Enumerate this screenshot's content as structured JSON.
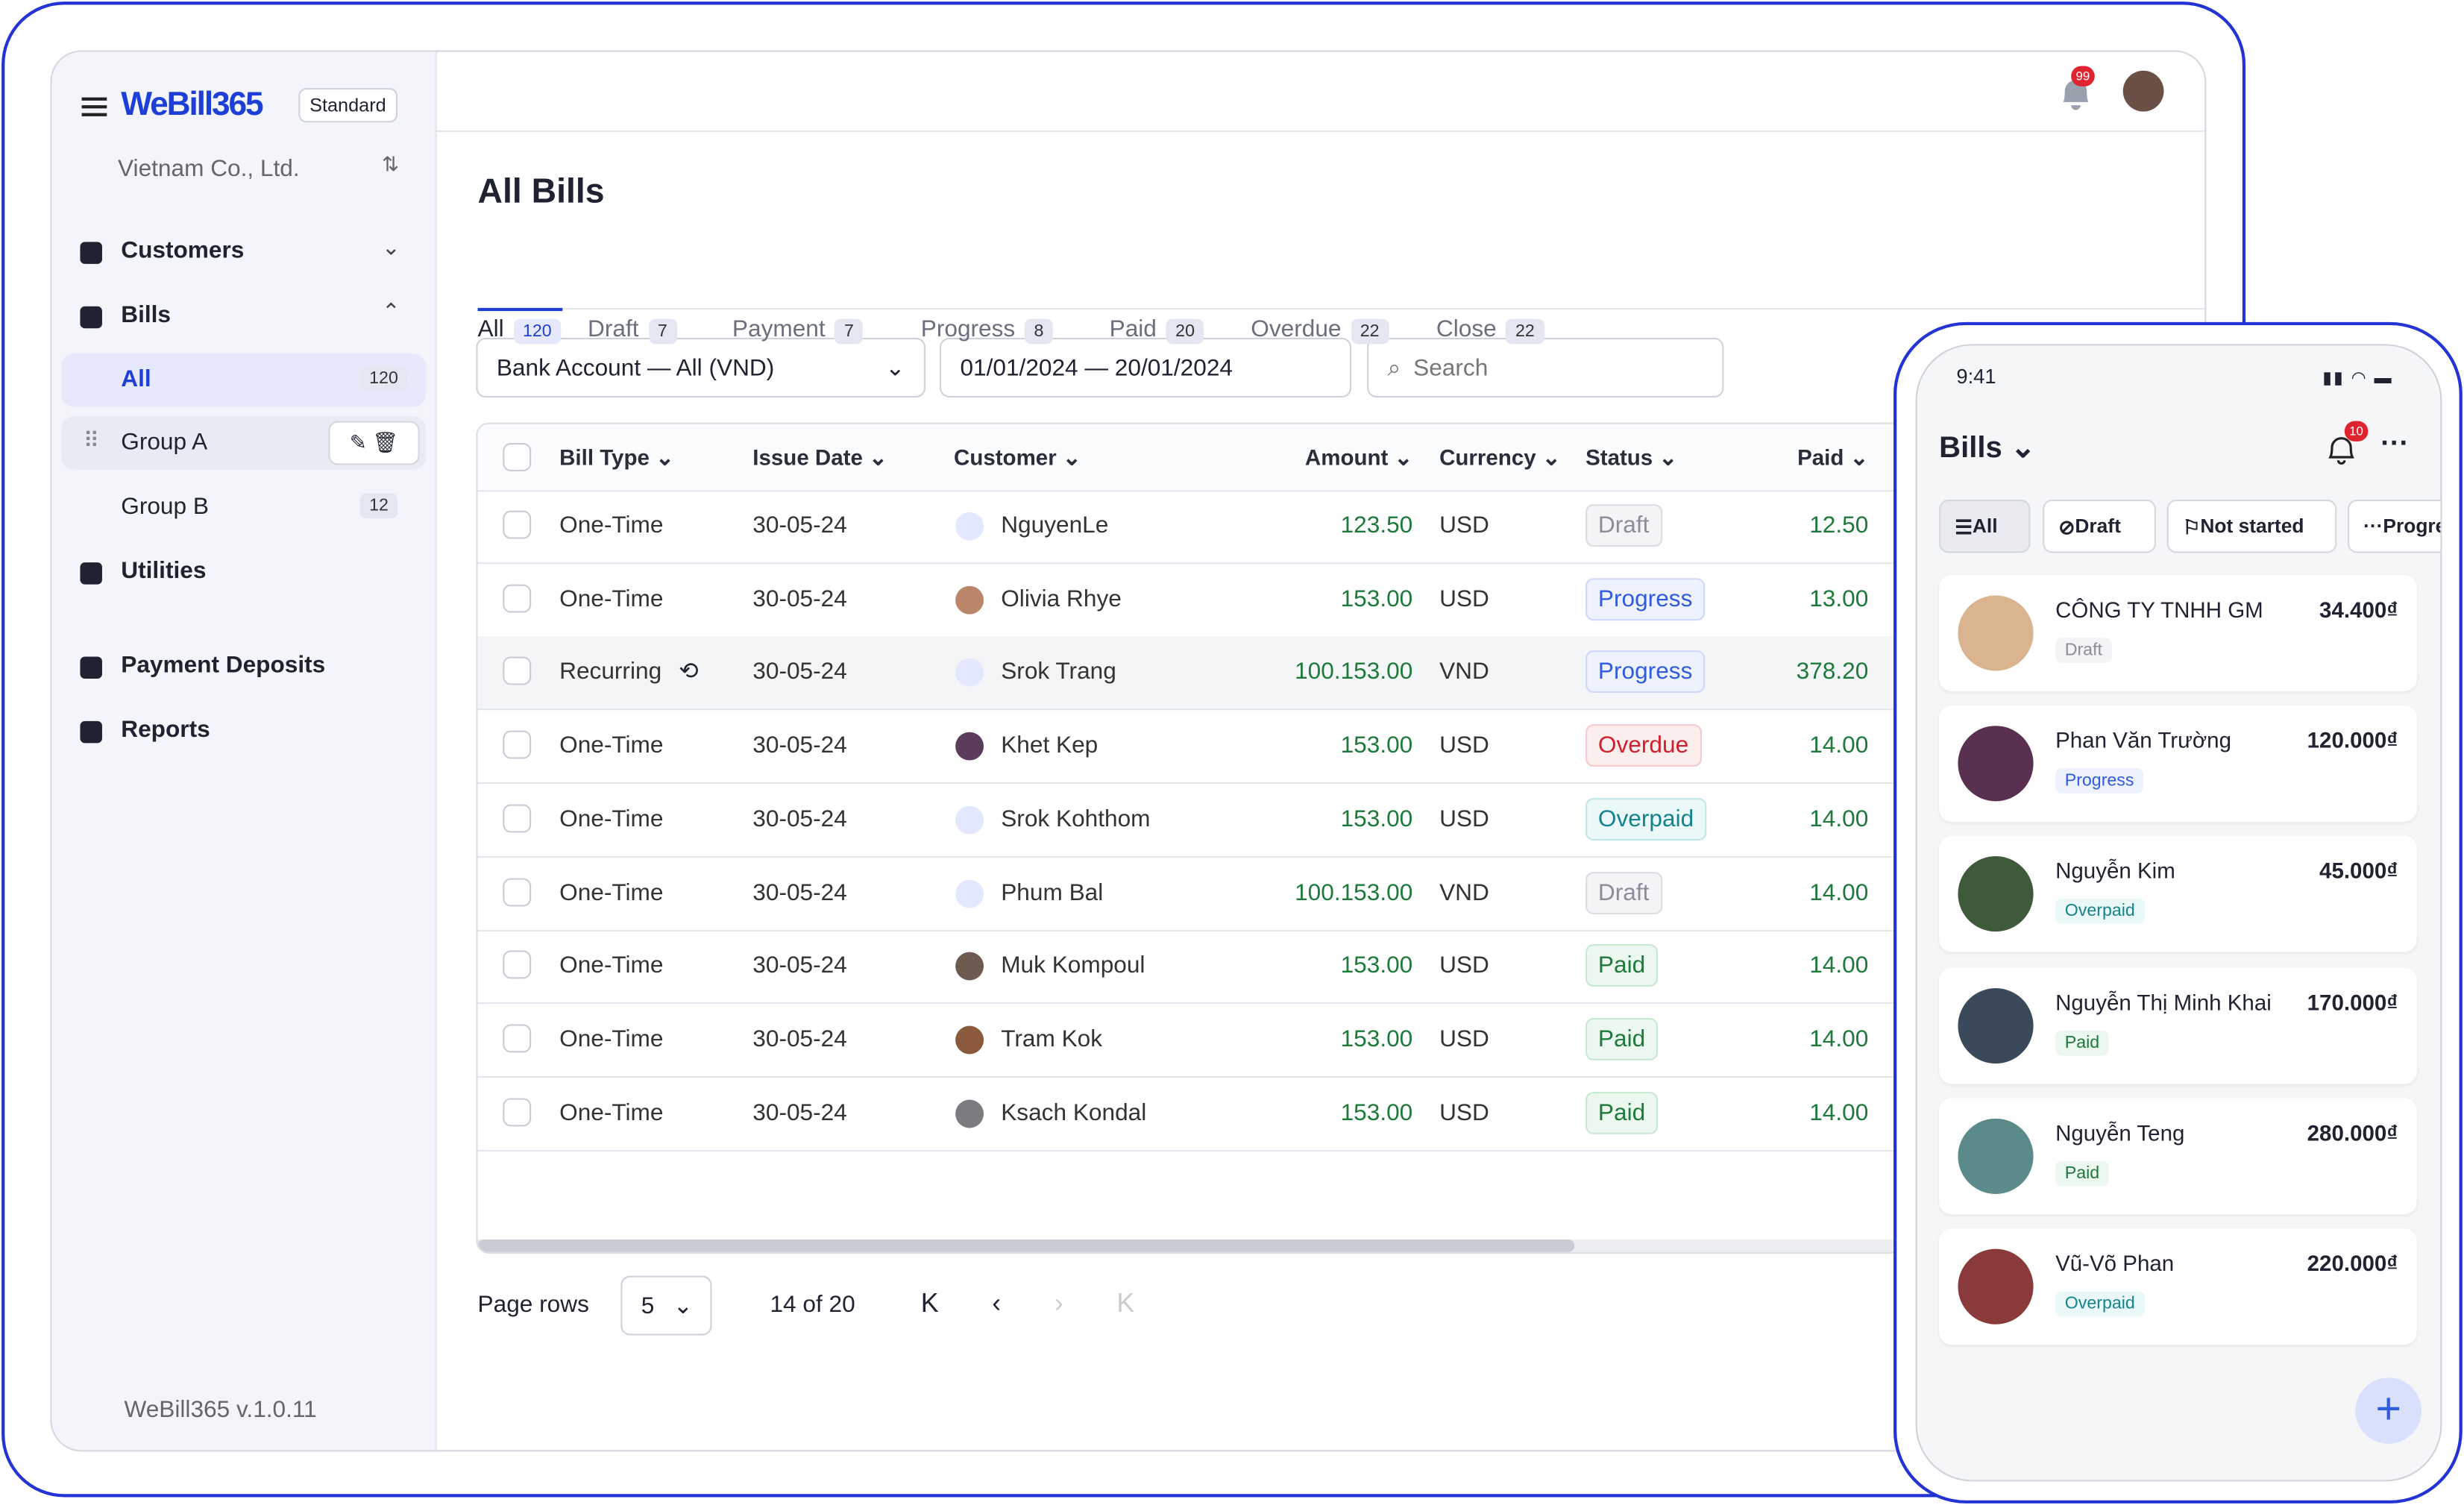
{
  "sidebar": {
    "brand": "WeBill365",
    "plan": "Standard",
    "company": "Vietnam Co., Ltd.",
    "items": [
      "Customers",
      "Bills",
      "Utilities",
      "Payment Deposits",
      "Reports"
    ],
    "groups": [
      {
        "label": "All",
        "count": "120"
      },
      {
        "label": "Group A"
      },
      {
        "label": "Group B",
        "count": "12"
      }
    ],
    "version": "WeBill365 v.1.0.11"
  },
  "header": {
    "notifications": "99"
  },
  "title": "All Bills",
  "tabs": [
    {
      "label": "All",
      "count": "120"
    },
    {
      "label": "Draft",
      "count": "7"
    },
    {
      "label": "Payment",
      "count": "7"
    },
    {
      "label": "Progress",
      "count": "8"
    },
    {
      "label": "Paid",
      "count": "20"
    },
    {
      "label": "Overdue",
      "count": "22"
    },
    {
      "label": "Close",
      "count": "22"
    }
  ],
  "filters": {
    "account": "Bank Account — All (VND)",
    "dates": "01/01/2024 — 20/01/2024",
    "search": "Search"
  },
  "table": {
    "columns": [
      "Bill Type",
      "Issue Date",
      "Customer",
      "Amount",
      "Currency",
      "Status",
      "Paid"
    ],
    "rows": [
      [
        "One-Time",
        "30-05-24",
        "NguyenLe",
        "123.50",
        "USD",
        "Draft",
        "12.50"
      ],
      [
        "One-Time",
        "30-05-24",
        "Olivia Rhye",
        "153.00",
        "USD",
        "Progress",
        "13.00"
      ],
      [
        "Recurring",
        "30-05-24",
        "Srok Trang",
        "100.153.00",
        "VND",
        "Progress",
        "378.20"
      ],
      [
        "One-Time",
        "30-05-24",
        "Khet Kep",
        "153.00",
        "USD",
        "Overdue",
        "14.00"
      ],
      [
        "One-Time",
        "30-05-24",
        "Srok Kohthom",
        "153.00",
        "USD",
        "Overpaid",
        "14.00"
      ],
      [
        "One-Time",
        "30-05-24",
        "Phum Bal",
        "100.153.00",
        "VND",
        "Draft",
        "14.00"
      ],
      [
        "One-Time",
        "30-05-24",
        "Muk Kompoul",
        "153.00",
        "USD",
        "Paid",
        "14.00"
      ],
      [
        "One-Time",
        "30-05-24",
        "Tram Kok",
        "153.00",
        "USD",
        "Paid",
        "14.00"
      ],
      [
        "One-Time",
        "30-05-24",
        "Ksach Kondal",
        "153.00",
        "USD",
        "Paid",
        "14.00"
      ]
    ]
  },
  "pagination": {
    "label": "Page rows",
    "size": "5",
    "range": "14 of 20"
  },
  "mobile": {
    "time": "9:41",
    "title": "Bills",
    "notifications": "10",
    "chips": [
      "All",
      "Draft",
      "Not started",
      "Progress"
    ],
    "cards": [
      {
        "name": "CÔNG TY TNHH GM",
        "status": "Draft",
        "amount": "34.400₫"
      },
      {
        "name": "Phan Văn Trường",
        "status": "Progress",
        "amount": "120.000₫"
      },
      {
        "name": "Nguyễn Kim",
        "status": "Overpaid",
        "amount": "45.000₫"
      },
      {
        "name": "Nguyễn Thị Minh Khai",
        "status": "Paid",
        "amount": "170.000₫"
      },
      {
        "name": "Nguyễn Teng",
        "status": "Paid",
        "amount": "280.000₫"
      },
      {
        "name": "Vũ-Võ Phan",
        "status": "Overpaid",
        "amount": "220.000₫"
      }
    ]
  }
}
